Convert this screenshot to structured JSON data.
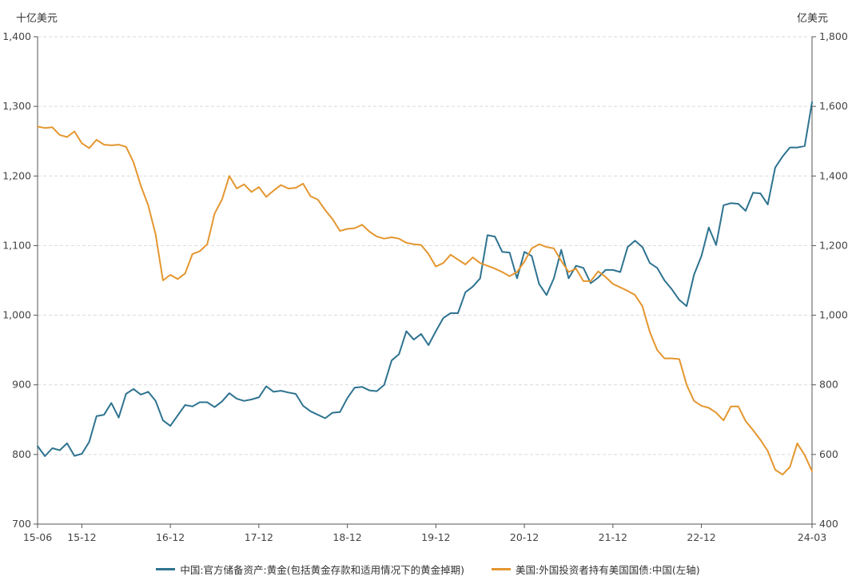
{
  "chart_data": {
    "type": "line",
    "left_unit": "十亿美元",
    "right_unit": "亿美元",
    "x_tick_labels": [
      "15-06",
      "15-12",
      "16-12",
      "17-12",
      "18-12",
      "19-12",
      "20-12",
      "21-12",
      "22-12",
      "24-03"
    ],
    "x_tick_months": [
      "2015-06",
      "2015-12",
      "2016-12",
      "2017-12",
      "2018-12",
      "2019-12",
      "2020-12",
      "2021-12",
      "2022-12",
      "2024-03"
    ],
    "x_range": [
      "2015-06",
      "2024-03"
    ],
    "left_axis": {
      "min": 700,
      "max": 1400,
      "ticks": [
        "700",
        "800",
        "900",
        "1,000",
        "1,100",
        "1,200",
        "1,300",
        "1,400"
      ],
      "tick_values": [
        700,
        800,
        900,
        1000,
        1100,
        1200,
        1300,
        1400
      ]
    },
    "right_axis": {
      "min": 400,
      "max": 1800,
      "ticks": [
        "400",
        "600",
        "800",
        "1,000",
        "1,200",
        "1,400",
        "1,600",
        "1,800"
      ],
      "tick_values": [
        400,
        600,
        800,
        1000,
        1200,
        1400,
        1600,
        1800
      ]
    },
    "grid": true,
    "legend_position": "bottom",
    "series": [
      {
        "name": "中国:官方储备资产:黄金(包括黄金存款和适用情况下的黄金掉期)",
        "axis": "right",
        "color": "#2e7390",
        "start": "2015-06",
        "values": [
          624,
          595,
          618,
          612,
          632,
          596,
          602,
          636,
          710,
          714,
          748,
          706,
          774,
          788,
          772,
          780,
          754,
          698,
          682,
          712,
          742,
          738,
          750,
          750,
          736,
          752,
          776,
          760,
          754,
          758,
          764,
          796,
          780,
          783,
          778,
          774,
          740,
          724,
          714,
          704,
          720,
          722,
          762,
          792,
          794,
          784,
          782,
          800,
          870,
          888,
          954,
          930,
          946,
          914,
          954,
          992,
          1006,
          1006,
          1066,
          1082,
          1106,
          1230,
          1226,
          1182,
          1180,
          1106,
          1182,
          1170,
          1090,
          1058,
          1106,
          1188,
          1106,
          1142,
          1136,
          1092,
          1108,
          1130,
          1130,
          1124,
          1196,
          1214,
          1196,
          1150,
          1136,
          1100,
          1074,
          1044,
          1026,
          1116,
          1170,
          1252,
          1202,
          1316,
          1322,
          1320,
          1300,
          1352,
          1350,
          1318,
          1424,
          1456,
          1482,
          1482,
          1486,
          1612
        ]
      },
      {
        "name": "美国:外国投资者持有美国国债:中国(左轴)",
        "axis": "left",
        "color": "#e4962f",
        "start": "2015-06",
        "values": [
          1271,
          1269,
          1270,
          1259,
          1256,
          1264,
          1247,
          1240,
          1252,
          1245,
          1244,
          1245,
          1242,
          1220,
          1186,
          1158,
          1116,
          1050,
          1058,
          1052,
          1060,
          1088,
          1092,
          1102,
          1146,
          1166,
          1200,
          1182,
          1188,
          1177,
          1184,
          1170,
          1179,
          1187,
          1182,
          1183,
          1189,
          1171,
          1166,
          1151,
          1138,
          1121,
          1124,
          1125,
          1130,
          1120,
          1113,
          1110,
          1112,
          1110,
          1104,
          1102,
          1101,
          1088,
          1070,
          1075,
          1087,
          1080,
          1073,
          1083,
          1075,
          1071,
          1067,
          1062,
          1056,
          1062,
          1077,
          1096,
          1102,
          1098,
          1096,
          1078,
          1062,
          1067,
          1049,
          1049,
          1063,
          1055,
          1045,
          1040,
          1035,
          1029,
          1013,
          976,
          950,
          938,
          938,
          937,
          900,
          877,
          870,
          867,
          860,
          849,
          869,
          869,
          848,
          835,
          821,
          805,
          778,
          771,
          782,
          816,
          799,
          776
        ]
      }
    ]
  }
}
